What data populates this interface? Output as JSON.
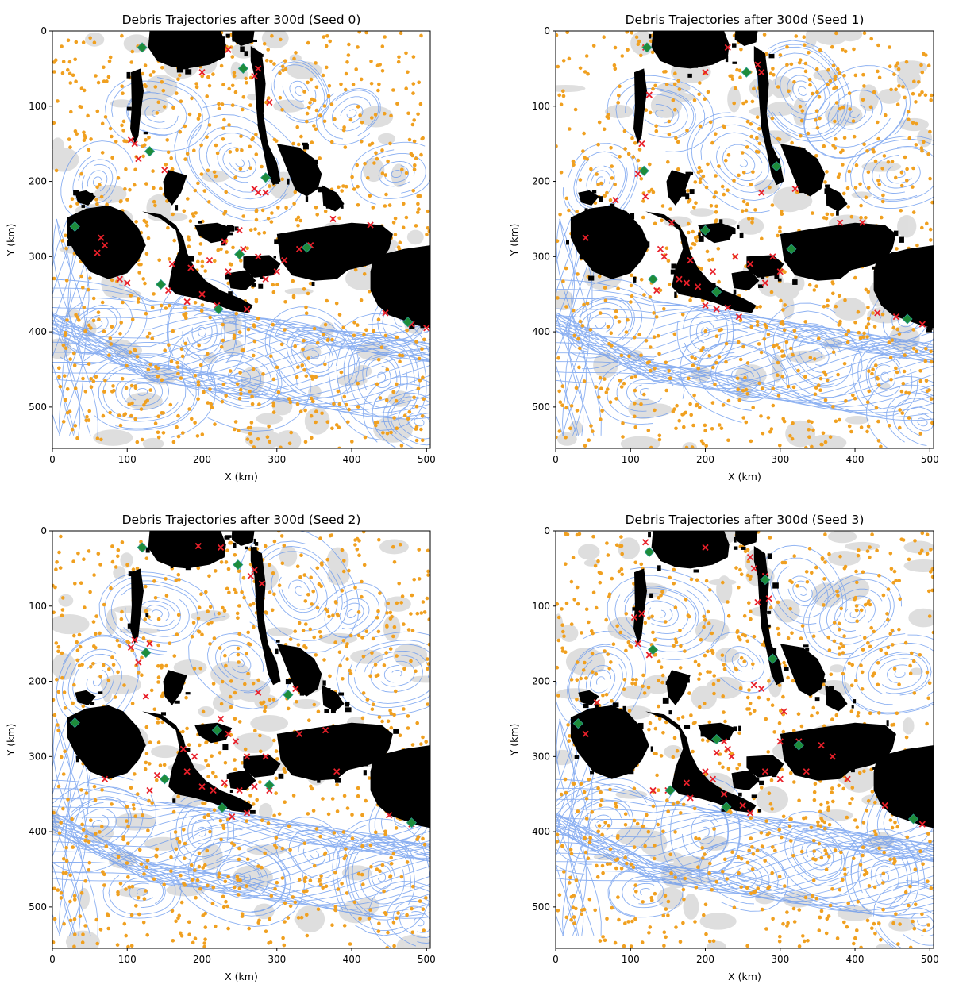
{
  "figure": {
    "colors": {
      "background": "#ffffff",
      "land": "#000000",
      "streamline": "#6495ed",
      "debris": "#f0a020",
      "beached": "#e8202a",
      "source": "#1e8c3a",
      "source_edge": "#2a9d8f",
      "speed_shade": "#8c8c8c"
    },
    "shared_axes": {
      "xlabel": "X (km)",
      "ylabel": "Y (km)",
      "xlim": [
        0,
        505
      ],
      "ylim": [
        555,
        0
      ],
      "xticks": [
        "0",
        "100",
        "200",
        "300",
        "400",
        "500"
      ],
      "yticks": [
        "0",
        "100",
        "200",
        "300",
        "400",
        "500"
      ]
    }
  },
  "chart_data": [
    {
      "type": "scatter",
      "title": "Debris Trajectories after 300d (Seed 0)",
      "xlabel": "X (km)",
      "ylabel": "Y (km)",
      "xlim": [
        0,
        505
      ],
      "ylim": [
        555,
        0
      ],
      "grid": false,
      "legend": "none",
      "series": [
        {
          "marker": "x",
          "color": "#e8202a",
          "points": [
            [
              120,
              22
            ],
            [
              235,
              25
            ],
            [
              200,
              55
            ],
            [
              275,
              50
            ],
            [
              270,
              60
            ],
            [
              290,
              95
            ],
            [
              105,
              145
            ],
            [
              110,
              150
            ],
            [
              115,
              170
            ],
            [
              150,
              185
            ],
            [
              275,
              215
            ],
            [
              285,
              215
            ],
            [
              270,
              210
            ],
            [
              250,
              265
            ],
            [
              230,
              280
            ],
            [
              255,
              290
            ],
            [
              275,
              300
            ],
            [
              65,
              275
            ],
            [
              70,
              285
            ],
            [
              60,
              295
            ],
            [
              90,
              330
            ],
            [
              100,
              335
            ],
            [
              155,
              345
            ],
            [
              180,
              360
            ],
            [
              200,
              350
            ],
            [
              220,
              365
            ],
            [
              260,
              370
            ],
            [
              285,
              330
            ],
            [
              300,
              320
            ],
            [
              310,
              305
            ],
            [
              330,
              290
            ],
            [
              345,
              285
            ],
            [
              375,
              250
            ],
            [
              425,
              258
            ],
            [
              445,
              375
            ],
            [
              480,
              390
            ],
            [
              500,
              395
            ],
            [
              185,
              315
            ],
            [
              210,
              305
            ],
            [
              235,
              320
            ],
            [
              160,
              310
            ]
          ]
        },
        {
          "marker": "D",
          "color": "#1e8c3a",
          "points": [
            [
              120,
              22
            ],
            [
              255,
              50
            ],
            [
              130,
              160
            ],
            [
              285,
              195
            ],
            [
              30,
              260
            ],
            [
              145,
              337
            ],
            [
              222,
              370
            ],
            [
              340,
              288
            ],
            [
              250,
              297
            ],
            [
              475,
              387
            ]
          ]
        }
      ]
    },
    {
      "type": "scatter",
      "title": "Debris Trajectories after 300d (Seed 1)",
      "xlabel": "X (km)",
      "ylabel": "Y (km)",
      "xlim": [
        0,
        505
      ],
      "ylim": [
        555,
        0
      ],
      "grid": false,
      "legend": "none",
      "series": [
        {
          "marker": "x",
          "color": "#e8202a",
          "points": [
            [
              120,
              22
            ],
            [
              230,
              22
            ],
            [
              200,
              55
            ],
            [
              270,
              45
            ],
            [
              275,
              55
            ],
            [
              125,
              85
            ],
            [
              115,
              150
            ],
            [
              110,
              190
            ],
            [
              120,
              220
            ],
            [
              155,
              255
            ],
            [
              80,
              225
            ],
            [
              40,
              275
            ],
            [
              140,
              290
            ],
            [
              145,
              300
            ],
            [
              135,
              345
            ],
            [
              165,
              330
            ],
            [
              175,
              335
            ],
            [
              190,
              340
            ],
            [
              210,
              320
            ],
            [
              200,
              365
            ],
            [
              215,
              370
            ],
            [
              230,
              368
            ],
            [
              245,
              380
            ],
            [
              280,
              335
            ],
            [
              300,
              320
            ],
            [
              290,
              300
            ],
            [
              380,
              255
            ],
            [
              410,
              255
            ],
            [
              430,
              375
            ],
            [
              455,
              380
            ],
            [
              490,
              390
            ],
            [
              275,
              215
            ],
            [
              320,
              210
            ],
            [
              240,
              300
            ],
            [
              260,
              310
            ],
            [
              180,
              305
            ]
          ]
        },
        {
          "marker": "D",
          "color": "#1e8c3a",
          "points": [
            [
              122,
              22
            ],
            [
              255,
              55
            ],
            [
              118,
              186
            ],
            [
              295,
              180
            ],
            [
              200,
              265
            ],
            [
              130,
              330
            ],
            [
              215,
              347
            ],
            [
              315,
              290
            ],
            [
              470,
              383
            ]
          ]
        }
      ]
    },
    {
      "type": "scatter",
      "title": "Debris Trajectories after 300d (Seed 2)",
      "xlabel": "X (km)",
      "ylabel": "Y (km)",
      "xlim": [
        0,
        505
      ],
      "ylim": [
        555,
        0
      ],
      "grid": false,
      "legend": "none",
      "series": [
        {
          "marker": "x",
          "color": "#e8202a",
          "points": [
            [
              120,
              22
            ],
            [
              195,
              20
            ],
            [
              225,
              22
            ],
            [
              270,
              52
            ],
            [
              265,
              60
            ],
            [
              280,
              70
            ],
            [
              110,
              145
            ],
            [
              105,
              155
            ],
            [
              130,
              150
            ],
            [
              115,
              175
            ],
            [
              125,
              220
            ],
            [
              275,
              215
            ],
            [
              325,
              210
            ],
            [
              225,
              250
            ],
            [
              235,
              270
            ],
            [
              245,
              280
            ],
            [
              260,
              300
            ],
            [
              285,
              300
            ],
            [
              175,
              290
            ],
            [
              190,
              300
            ],
            [
              180,
              320
            ],
            [
              200,
              340
            ],
            [
              215,
              345
            ],
            [
              230,
              335
            ],
            [
              250,
              345
            ],
            [
              270,
              340
            ],
            [
              290,
              345
            ],
            [
              140,
              325
            ],
            [
              130,
              345
            ],
            [
              70,
              330
            ],
            [
              330,
              270
            ],
            [
              365,
              265
            ],
            [
              380,
              320
            ],
            [
              450,
              378
            ],
            [
              480,
              390
            ],
            [
              240,
              380
            ],
            [
              260,
              375
            ]
          ]
        },
        {
          "marker": "D",
          "color": "#1e8c3a",
          "points": [
            [
              120,
              22
            ],
            [
              248,
              45
            ],
            [
              125,
              162
            ],
            [
              315,
              218
            ],
            [
              30,
              255
            ],
            [
              220,
              265
            ],
            [
              150,
              330
            ],
            [
              227,
              368
            ],
            [
              290,
              338
            ],
            [
              480,
              388
            ]
          ]
        }
      ]
    },
    {
      "type": "scatter",
      "title": "Debris Trajectories after 300d (Seed 3)",
      "xlabel": "X (km)",
      "ylabel": "Y (km)",
      "xlim": [
        0,
        505
      ],
      "ylim": [
        555,
        0
      ],
      "grid": false,
      "legend": "none",
      "series": [
        {
          "marker": "x",
          "color": "#e8202a",
          "points": [
            [
              120,
              15
            ],
            [
              200,
              22
            ],
            [
              260,
              35
            ],
            [
              265,
              50
            ],
            [
              280,
              60
            ],
            [
              285,
              90
            ],
            [
              270,
              95
            ],
            [
              105,
              115
            ],
            [
              115,
              110
            ],
            [
              110,
              150
            ],
            [
              125,
              165
            ],
            [
              55,
              228
            ],
            [
              40,
              270
            ],
            [
              265,
              205
            ],
            [
              275,
              210
            ],
            [
              305,
              240
            ],
            [
              225,
              280
            ],
            [
              230,
              290
            ],
            [
              235,
              300
            ],
            [
              215,
              295
            ],
            [
              200,
              320
            ],
            [
              210,
              330
            ],
            [
              175,
              335
            ],
            [
              150,
              345
            ],
            [
              130,
              345
            ],
            [
              180,
              355
            ],
            [
              225,
              350
            ],
            [
              250,
              365
            ],
            [
              260,
              375
            ],
            [
              280,
              320
            ],
            [
              300,
              330
            ],
            [
              335,
              320
            ],
            [
              370,
              300
            ],
            [
              390,
              330
            ],
            [
              440,
              365
            ],
            [
              490,
              390
            ],
            [
              300,
              280
            ],
            [
              325,
              280
            ],
            [
              355,
              285
            ]
          ]
        },
        {
          "marker": "D",
          "color": "#1e8c3a",
          "points": [
            [
              125,
              28
            ],
            [
              280,
              65
            ],
            [
              130,
              158
            ],
            [
              290,
              170
            ],
            [
              30,
              256
            ],
            [
              215,
              277
            ],
            [
              153,
              345
            ],
            [
              228,
              367
            ],
            [
              325,
              285
            ],
            [
              478,
              383
            ]
          ]
        }
      ]
    }
  ]
}
